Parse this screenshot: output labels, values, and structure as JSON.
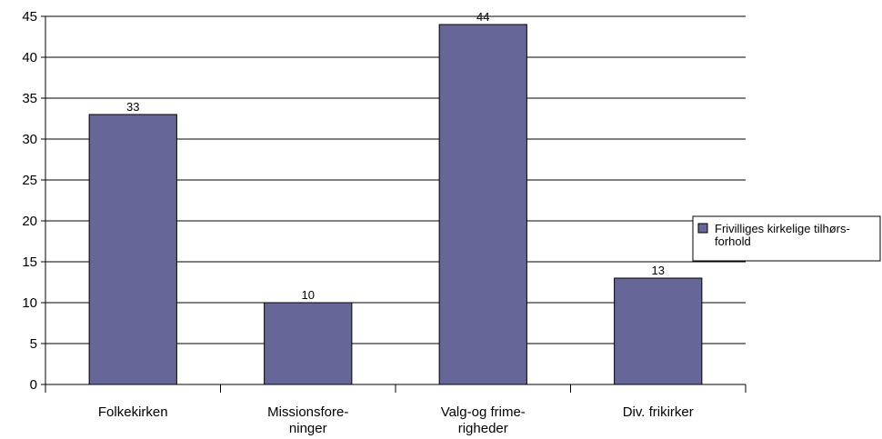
{
  "chart_data": {
    "type": "bar",
    "categories": [
      [
        "Folkekirken"
      ],
      [
        "Missionsfore-",
        "ninger"
      ],
      [
        "Valg-og frime-",
        "righeder"
      ],
      [
        "Div. frikirker"
      ]
    ],
    "series": [
      {
        "name": "Frivilliges kirkelige tilhørs-forhold",
        "values": [
          33,
          10,
          44,
          13
        ]
      }
    ],
    "legend_lines": [
      "Frivilliges kirkelige tilhørs-",
      "forhold"
    ],
    "data_labels": [
      "33",
      "10",
      "44",
      "13"
    ],
    "ylim": [
      0,
      45
    ],
    "yticks": [
      0,
      5,
      10,
      15,
      20,
      25,
      30,
      35,
      40,
      45
    ],
    "grid": true,
    "legend_position": "right",
    "bar_color": "#666699"
  }
}
